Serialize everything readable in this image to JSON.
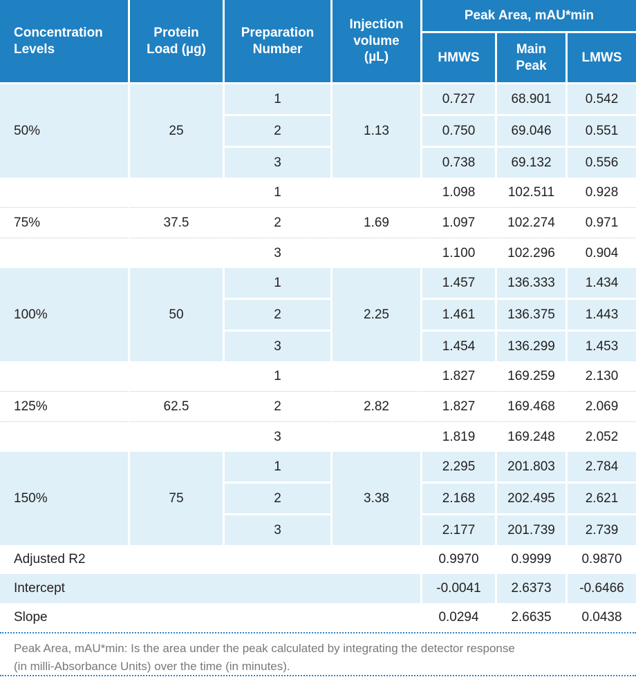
{
  "table": {
    "header": {
      "col_concentration": "Concentration Levels",
      "col_protein_load": "Protein Load (µg)",
      "col_preparation": "Preparation Number",
      "col_injection": "Injection volume (µL)",
      "peak_area_group": "Peak Area, mAU*min",
      "col_hmws": "HMWS",
      "col_main_peak": "Main Peak",
      "col_lmws": "LMWS"
    },
    "groups": [
      {
        "level": "50%",
        "protein_load": "25",
        "injection_volume": "1.13",
        "rows": [
          {
            "prep": "1",
            "hmws": "0.727",
            "main_peak": "68.901",
            "lmws": "0.542"
          },
          {
            "prep": "2",
            "hmws": "0.750",
            "main_peak": "69.046",
            "lmws": "0.551"
          },
          {
            "prep": "3",
            "hmws": "0.738",
            "main_peak": "69.132",
            "lmws": "0.556"
          }
        ]
      },
      {
        "level": "75%",
        "protein_load": "37.5",
        "injection_volume": "1.69",
        "rows": [
          {
            "prep": "1",
            "hmws": "1.098",
            "main_peak": "102.511",
            "lmws": "0.928"
          },
          {
            "prep": "2",
            "hmws": "1.097",
            "main_peak": "102.274",
            "lmws": "0.971"
          },
          {
            "prep": "3",
            "hmws": "1.100",
            "main_peak": "102.296",
            "lmws": "0.904"
          }
        ]
      },
      {
        "level": "100%",
        "protein_load": "50",
        "injection_volume": "2.25",
        "rows": [
          {
            "prep": "1",
            "hmws": "1.457",
            "main_peak": "136.333",
            "lmws": "1.434"
          },
          {
            "prep": "2",
            "hmws": "1.461",
            "main_peak": "136.375",
            "lmws": "1.443"
          },
          {
            "prep": "3",
            "hmws": "1.454",
            "main_peak": "136.299",
            "lmws": "1.453"
          }
        ]
      },
      {
        "level": "125%",
        "protein_load": "62.5",
        "injection_volume": "2.82",
        "rows": [
          {
            "prep": "1",
            "hmws": "1.827",
            "main_peak": "169.259",
            "lmws": "2.130"
          },
          {
            "prep": "2",
            "hmws": "1.827",
            "main_peak": "169.468",
            "lmws": "2.069"
          },
          {
            "prep": "3",
            "hmws": "1.819",
            "main_peak": "169.248",
            "lmws": "2.052"
          }
        ]
      },
      {
        "level": "150%",
        "protein_load": "75",
        "injection_volume": "3.38",
        "rows": [
          {
            "prep": "1",
            "hmws": "2.295",
            "main_peak": "201.803",
            "lmws": "2.784"
          },
          {
            "prep": "2",
            "hmws": "2.168",
            "main_peak": "202.495",
            "lmws": "2.621"
          },
          {
            "prep": "3",
            "hmws": "2.177",
            "main_peak": "201.739",
            "lmws": "2.739"
          }
        ]
      }
    ],
    "summary": [
      {
        "label": "Adjusted R2",
        "hmws": "0.9970",
        "main_peak": "0.9999",
        "lmws": "0.9870"
      },
      {
        "label": "Intercept",
        "hmws": "-0.0041",
        "main_peak": "2.6373",
        "lmws": "-0.6466"
      },
      {
        "label": "Slope",
        "hmws": "0.0294",
        "main_peak": "2.6635",
        "lmws": "0.0438"
      }
    ]
  },
  "footnote": {
    "line1": "Peak Area, mAU*min: Is the area under the peak calculated by integrating the detector response",
    "line2": "(in milli-Absorbance Units) over the time (in minutes)."
  },
  "colors": {
    "header_blue": "#1f80c2",
    "row_light_blue": "#dff0f8",
    "text_dark": "#231f20",
    "footnote_gray": "#77787b",
    "dotted_blue": "#2e80c1",
    "dotted_gray": "#c4c6c8",
    "gridline_white": "#ffffff"
  }
}
